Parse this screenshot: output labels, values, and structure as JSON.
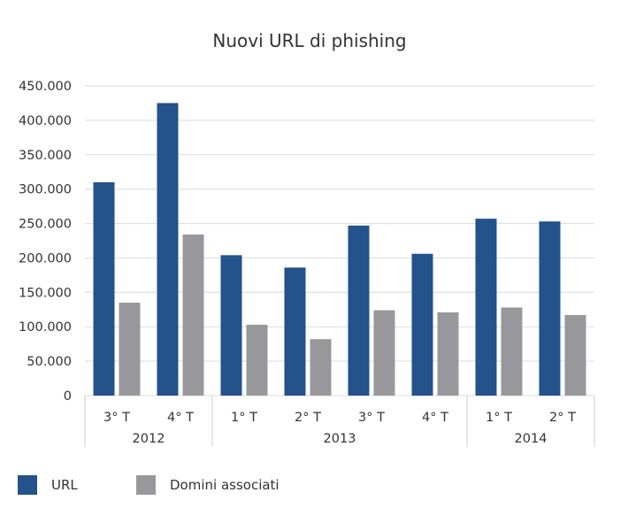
{
  "chart_data": {
    "type": "bar",
    "title": "Nuovi URL di phishing",
    "categories": [
      "3° T",
      "4° T",
      "1° T",
      "2° T",
      "3° T",
      "4° T",
      "1° T",
      "2° T"
    ],
    "groups": [
      {
        "label": "2012",
        "count": 2
      },
      {
        "label": "2013",
        "count": 4
      },
      {
        "label": "2014",
        "count": 2
      }
    ],
    "series": [
      {
        "name": "URL",
        "color": "#24528a",
        "values": [
          310000,
          425000,
          204000,
          186000,
          247000,
          206000,
          257000,
          253000
        ]
      },
      {
        "name": "Domini associati",
        "color": "#98989c",
        "values": [
          135000,
          234000,
          103000,
          82000,
          124000,
          121000,
          128000,
          117000
        ]
      }
    ],
    "yticks": [
      "0",
      "50.000",
      "100.000",
      "150.000",
      "200.000",
      "250.000",
      "300.000",
      "350.000",
      "400.000",
      "450.000"
    ],
    "ylim": [
      0,
      450000
    ],
    "grid": true,
    "legend_position": "bottom-left"
  }
}
